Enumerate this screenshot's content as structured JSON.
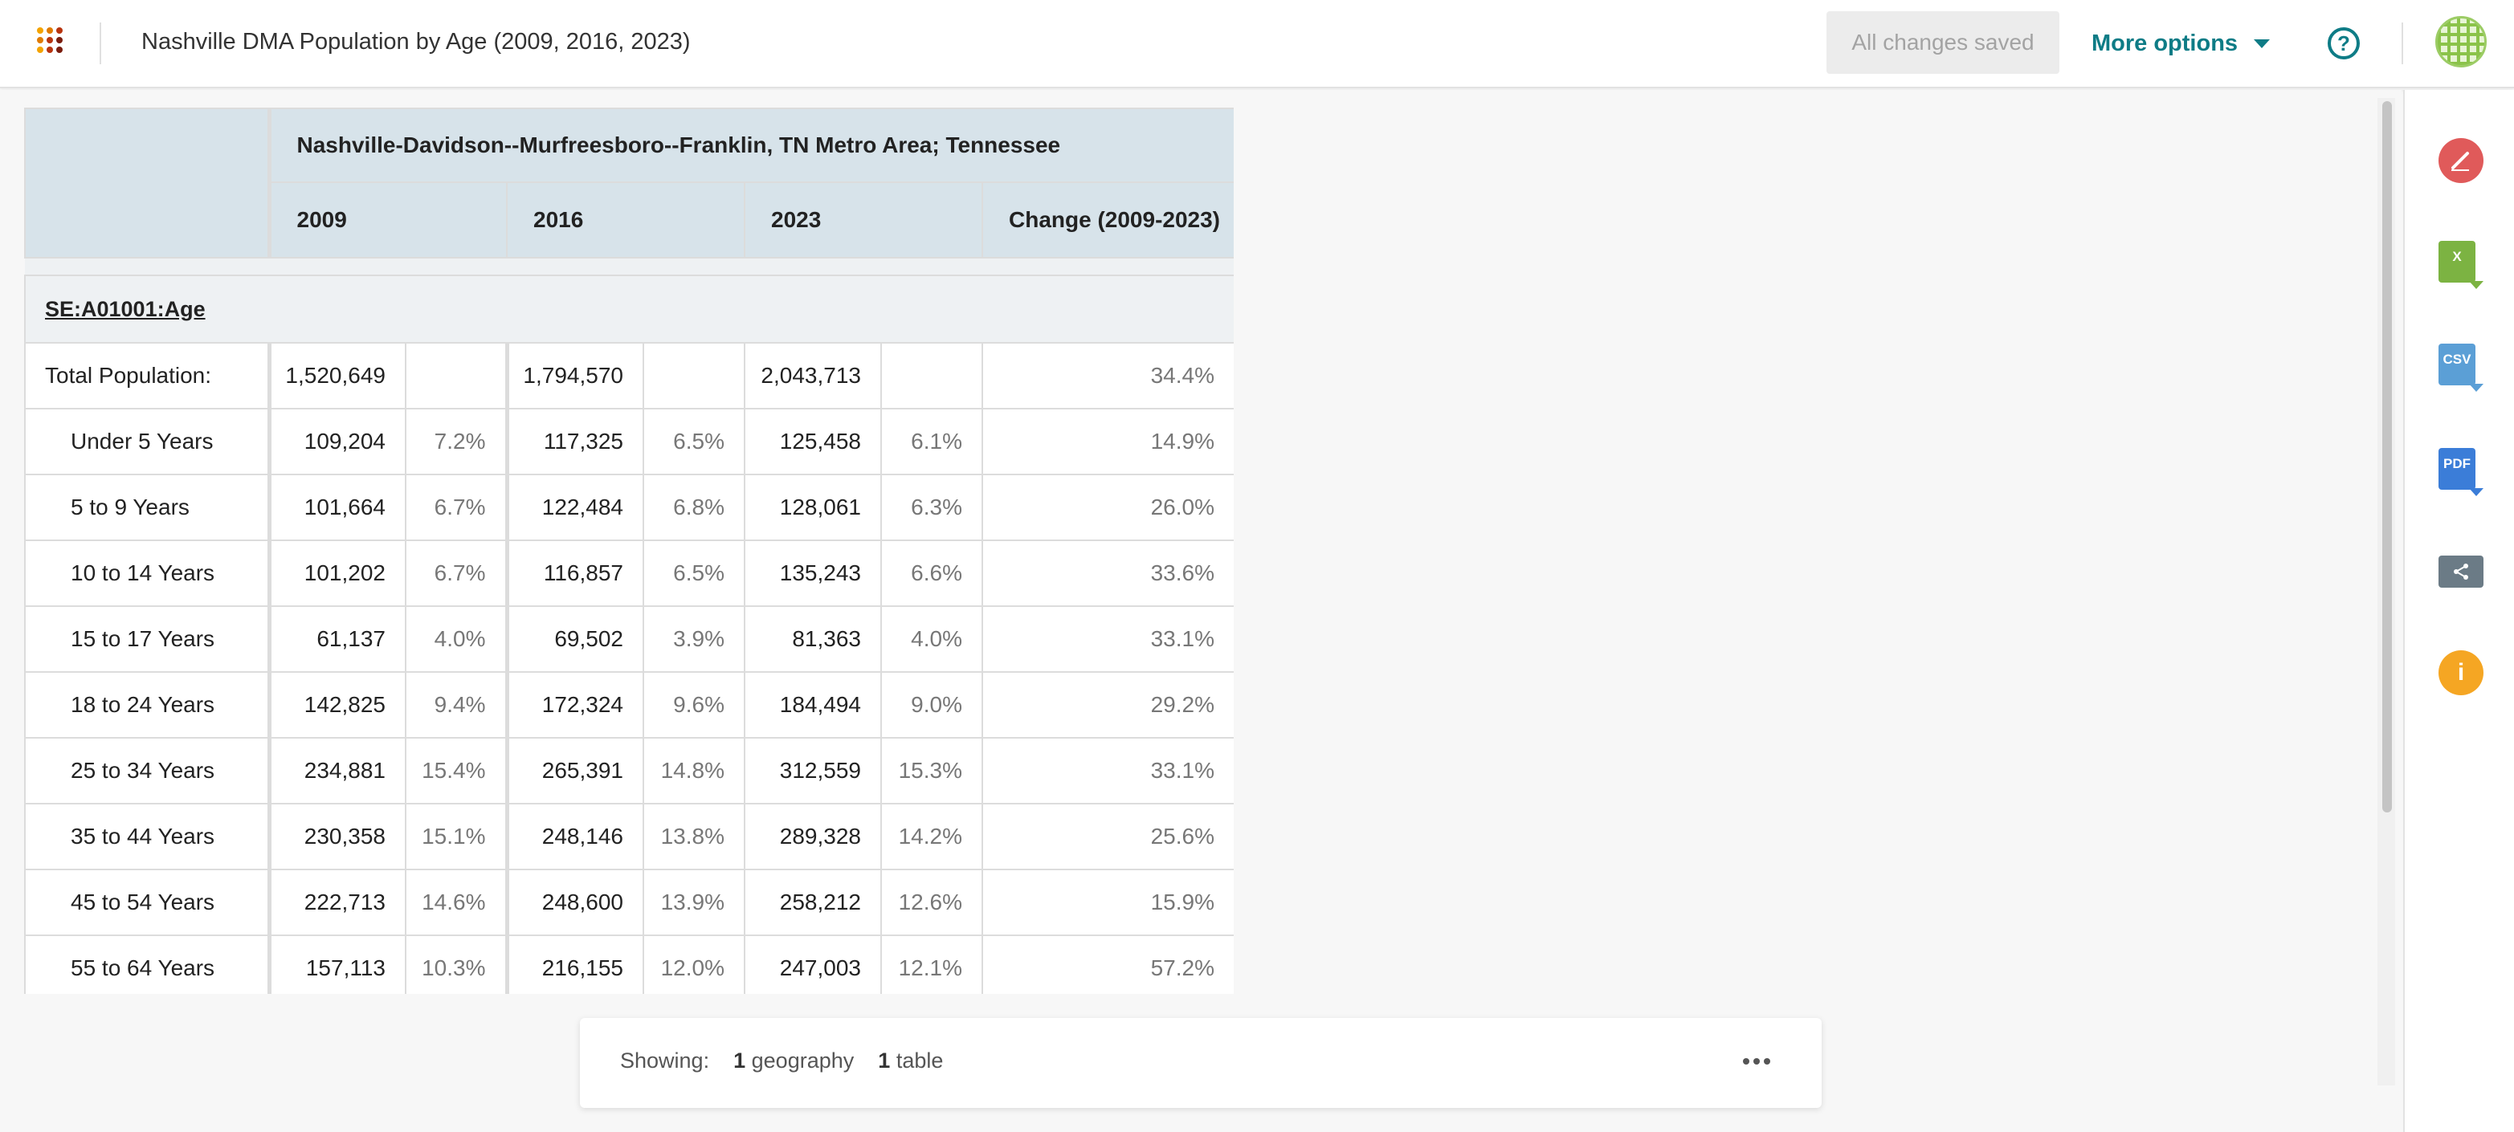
{
  "header": {
    "title": "Nashville DMA Population by Age (2009, 2016, 2023)",
    "saved_label": "All changes saved",
    "more_options_label": "More options",
    "help_glyph": "?",
    "app_icon": "apps-grid-icon"
  },
  "table": {
    "geography": "Nashville-Davidson--Murfreesboro--Franklin, TN Metro Area; Tennessee",
    "columns": [
      "2009",
      "2016",
      "2023",
      "Change (2009-2023)"
    ],
    "section_label": "SE:A01001:Age",
    "rows": [
      {
        "label": "Total Population:",
        "v2009": "1,520,649",
        "p2009": "",
        "v2016": "1,794,570",
        "p2016": "",
        "v2023": "2,043,713",
        "p2023": "",
        "change": "34.4%"
      },
      {
        "label": "Under 5 Years",
        "v2009": "109,204",
        "p2009": "7.2%",
        "v2016": "117,325",
        "p2016": "6.5%",
        "v2023": "125,458",
        "p2023": "6.1%",
        "change": "14.9%"
      },
      {
        "label": "5 to 9 Years",
        "v2009": "101,664",
        "p2009": "6.7%",
        "v2016": "122,484",
        "p2016": "6.8%",
        "v2023": "128,061",
        "p2023": "6.3%",
        "change": "26.0%"
      },
      {
        "label": "10 to 14 Years",
        "v2009": "101,202",
        "p2009": "6.7%",
        "v2016": "116,857",
        "p2016": "6.5%",
        "v2023": "135,243",
        "p2023": "6.6%",
        "change": "33.6%"
      },
      {
        "label": "15 to 17 Years",
        "v2009": "61,137",
        "p2009": "4.0%",
        "v2016": "69,502",
        "p2016": "3.9%",
        "v2023": "81,363",
        "p2023": "4.0%",
        "change": "33.1%"
      },
      {
        "label": "18 to 24 Years",
        "v2009": "142,825",
        "p2009": "9.4%",
        "v2016": "172,324",
        "p2016": "9.6%",
        "v2023": "184,494",
        "p2023": "9.0%",
        "change": "29.2%"
      },
      {
        "label": "25 to 34 Years",
        "v2009": "234,881",
        "p2009": "15.4%",
        "v2016": "265,391",
        "p2016": "14.8%",
        "v2023": "312,559",
        "p2023": "15.3%",
        "change": "33.1%"
      },
      {
        "label": "35 to 44 Years",
        "v2009": "230,358",
        "p2009": "15.1%",
        "v2016": "248,146",
        "p2016": "13.8%",
        "v2023": "289,328",
        "p2023": "14.2%",
        "change": "25.6%"
      },
      {
        "label": "45 to 54 Years",
        "v2009": "222,713",
        "p2009": "14.6%",
        "v2016": "248,600",
        "p2016": "13.9%",
        "v2023": "258,212",
        "p2023": "12.6%",
        "change": "15.9%"
      },
      {
        "label": "55 to 64 Years",
        "v2009": "157,113",
        "p2009": "10.3%",
        "v2016": "216,155",
        "p2016": "12.0%",
        "v2023": "247,003",
        "p2023": "12.1%",
        "change": "57.2%"
      }
    ]
  },
  "summary": {
    "showing_label": "Showing:",
    "geography_count": "1",
    "geography_label": "geography",
    "table_count": "1",
    "table_label": "table"
  },
  "sidebar": {
    "edit": {
      "icon": "edit-pencil-icon",
      "color": "#e05a5a"
    },
    "excel": {
      "icon": "excel-download-icon",
      "glyph": "X",
      "color": "#7cb342"
    },
    "csv": {
      "icon": "csv-download-icon",
      "glyph": "CSV",
      "color": "#5b9fd6"
    },
    "pdf": {
      "icon": "pdf-download-icon",
      "glyph": "PDF",
      "color": "#3b7dd8"
    },
    "share": {
      "icon": "share-icon",
      "color": "#6b7b86"
    },
    "info": {
      "icon": "info-icon",
      "glyph": "i",
      "color": "#f5a623"
    }
  },
  "colors": {
    "accent": "#0e7c86",
    "header_fill": "#d7e3ea"
  }
}
